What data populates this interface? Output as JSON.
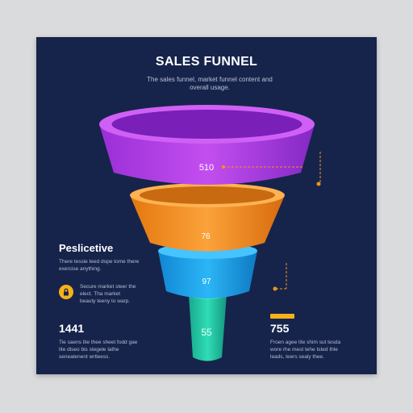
{
  "chart_data": {
    "type": "funnel",
    "title": "SALES FUNNEL",
    "subtitle": "The sales funnel, market funnel content and overall usage.",
    "stages": [
      {
        "label": "510",
        "value": 510,
        "color": "#b23ee0"
      },
      {
        "label": "76",
        "value": 76,
        "color": "#f39419"
      },
      {
        "label": "97",
        "value": 97,
        "color": "#1fa8ee"
      },
      {
        "label": "55",
        "value": 55,
        "color": "#22c9a6"
      }
    ]
  },
  "perspective": {
    "title": "Peslicetive",
    "description": "There tessie teed dope tome there exercise anything.",
    "lock_icon": "lock-icon",
    "lock_text": "Secure market steer the elect. Tha market beauty teeny to warp."
  },
  "stat_left": {
    "value": "1441",
    "description": "Tie saens lite thee sheet fodd gae lite diseo bis stegele lathe seneatenent wrtleess."
  },
  "stat_right": {
    "value": "755",
    "description": "Froen agee lite shim sut tesda wore rhe mest tehe tsted thle leads, teers sealy thee."
  },
  "colors": {
    "background": "#16244b",
    "accent": "#f6b21a",
    "stage_1": "#b23ee0",
    "stage_2": "#f39419",
    "stage_3": "#1fa8ee",
    "stage_4": "#22c9a6"
  }
}
